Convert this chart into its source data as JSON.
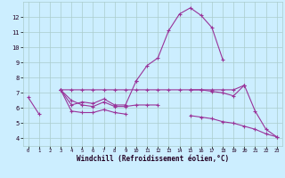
{
  "background_color": "#cceeff",
  "grid_color": "#aacccc",
  "line_color": "#993399",
  "xlabel": "Windchill (Refroidissement éolien,°C)",
  "x": [
    0,
    1,
    2,
    3,
    4,
    5,
    6,
    7,
    8,
    9,
    10,
    11,
    12,
    13,
    14,
    15,
    16,
    17,
    18,
    19,
    20,
    21,
    22,
    23
  ],
  "curves": [
    [
      6.7,
      5.6,
      null,
      null,
      null,
      null,
      null,
      null,
      null,
      null,
      null,
      null,
      null,
      null,
      null,
      null,
      null,
      null,
      null,
      null,
      null,
      null,
      null,
      null
    ],
    [
      null,
      null,
      null,
      7.2,
      6.2,
      6.4,
      6.3,
      6.6,
      6.2,
      6.2,
      7.8,
      null,
      null,
      null,
      null,
      null,
      null,
      null,
      null,
      null,
      null,
      null,
      null,
      null
    ],
    [
      null,
      null,
      null,
      7.2,
      5.8,
      5.7,
      5.7,
      5.9,
      5.7,
      5.6,
      null,
      null,
      null,
      null,
      null,
      null,
      null,
      null,
      null,
      null,
      null,
      null,
      null,
      null
    ],
    [
      null,
      null,
      null,
      7.2,
      6.5,
      6.2,
      6.1,
      6.4,
      6.1,
      6.1,
      6.2,
      6.2,
      6.2,
      null,
      null,
      null,
      null,
      null,
      null,
      null,
      null,
      null,
      null,
      null
    ],
    [
      null,
      null,
      null,
      7.2,
      7.2,
      7.2,
      7.2,
      7.2,
      7.2,
      7.2,
      7.2,
      7.2,
      7.2,
      7.2,
      7.2,
      7.2,
      7.2,
      7.2,
      7.2,
      7.2,
      7.5,
      null,
      null,
      null
    ],
    [
      null,
      null,
      null,
      null,
      null,
      null,
      null,
      null,
      null,
      null,
      7.8,
      8.8,
      9.3,
      11.1,
      12.2,
      12.6,
      12.1,
      11.3,
      9.2,
      null,
      null,
      null,
      null,
      null
    ],
    [
      null,
      null,
      null,
      null,
      null,
      null,
      null,
      null,
      null,
      null,
      null,
      null,
      null,
      null,
      null,
      7.2,
      7.2,
      7.1,
      7.0,
      6.8,
      7.5,
      null,
      null,
      null
    ],
    [
      null,
      null,
      null,
      null,
      null,
      null,
      null,
      null,
      null,
      null,
      null,
      null,
      null,
      null,
      null,
      null,
      null,
      null,
      null,
      null,
      7.5,
      5.8,
      4.6,
      4.1
    ],
    [
      null,
      null,
      null,
      null,
      null,
      null,
      null,
      null,
      null,
      null,
      null,
      null,
      null,
      null,
      null,
      5.5,
      5.4,
      5.3,
      5.1,
      5.0,
      4.8,
      4.6,
      4.3,
      4.1
    ]
  ],
  "ylim": [
    3.5,
    13.0
  ],
  "xlim": [
    -0.5,
    23.5
  ],
  "yticks": [
    4,
    5,
    6,
    7,
    8,
    9,
    10,
    11,
    12
  ],
  "xticks": [
    0,
    1,
    2,
    3,
    4,
    5,
    6,
    7,
    8,
    9,
    10,
    11,
    12,
    13,
    14,
    15,
    16,
    17,
    18,
    19,
    20,
    21,
    22,
    23
  ]
}
